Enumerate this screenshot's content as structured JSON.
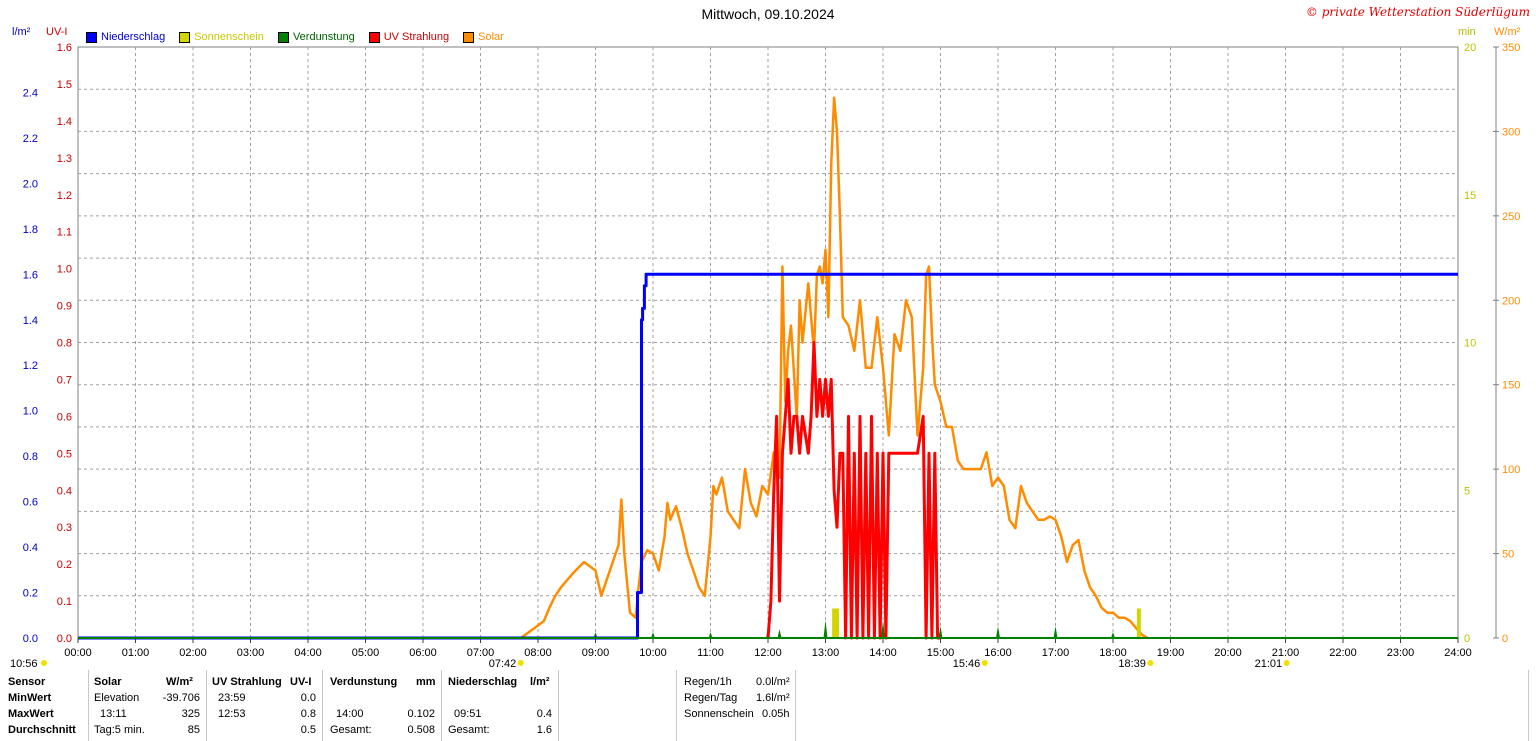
{
  "header": {
    "title": "Mittwoch, 09.10.2024",
    "copyright": "© private Wetterstation Süderlügum",
    "unit_rain": "l/m²",
    "unit_uv": "UV-I",
    "unit_min": "min",
    "unit_solar": "W/m²"
  },
  "legend": [
    {
      "label": "Niederschlag",
      "color": "#0000ff"
    },
    {
      "label": "Sonnenschein",
      "color": "#d4d400"
    },
    {
      "label": "Verdunstung",
      "color": "#008000"
    },
    {
      "label": "UV Strahlung",
      "color": "#ff0000"
    },
    {
      "label": "Solar",
      "color": "#ff8c00"
    }
  ],
  "chart_data": {
    "type": "line",
    "x_unit": "hour",
    "x_ticks": [
      "00:00",
      "01:00",
      "02:00",
      "03:00",
      "04:00",
      "05:00",
      "06:00",
      "07:00",
      "08:00",
      "09:00",
      "10:00",
      "11:00",
      "12:00",
      "13:00",
      "14:00",
      "15:00",
      "16:00",
      "17:00",
      "18:00",
      "19:00",
      "20:00",
      "21:00",
      "22:00",
      "23:00",
      "24:00"
    ],
    "y_axes": {
      "rain": {
        "label": "l/m²",
        "range": [
          0,
          2.6
        ],
        "ticks": [
          "0.0",
          "0.2",
          "0.4",
          "0.6",
          "0.8",
          "1.0",
          "1.2",
          "1.4",
          "1.6",
          "1.8",
          "2.0",
          "2.2",
          "2.4"
        ],
        "color": "#0000cc"
      },
      "uv": {
        "label": "UV-I",
        "range": [
          0,
          1.6
        ],
        "ticks": [
          "0.0",
          "0.1",
          "0.2",
          "0.3",
          "0.4",
          "0.5",
          "0.6",
          "0.7",
          "0.8",
          "0.9",
          "1.0",
          "1.1",
          "1.2",
          "1.3",
          "1.4",
          "1.5",
          "1.6"
        ],
        "color": "#cc0000"
      },
      "sun_min": {
        "label": "min",
        "range": [
          0,
          20
        ],
        "ticks": [
          "0",
          "5",
          "10",
          "15",
          "20"
        ],
        "color": "#cccc00"
      },
      "solar": {
        "label": "W/m²",
        "range": [
          0,
          350
        ],
        "ticks": [
          "0",
          "50",
          "100",
          "150",
          "200",
          "250",
          "300",
          "350"
        ],
        "color": "#ff8c00"
      }
    },
    "grid": true,
    "series": [
      {
        "name": "Niederschlag",
        "axis": "rain",
        "color": "#0000ff",
        "x": [
          0,
          9.73,
          9.73,
          9.8,
          9.8,
          9.82,
          9.82,
          9.85,
          9.85,
          9.88,
          9.88,
          24
        ],
        "y": [
          0,
          0,
          0.2,
          0.2,
          1.4,
          1.4,
          1.45,
          1.45,
          1.55,
          1.55,
          1.6,
          1.6
        ]
      },
      {
        "name": "Solar",
        "axis": "solar",
        "color": "#ff8c00",
        "x": [
          7.7,
          7.9,
          8.1,
          8.2,
          8.3,
          8.4,
          8.6,
          8.8,
          9.0,
          9.1,
          9.2,
          9.3,
          9.4,
          9.45,
          9.5,
          9.6,
          9.7,
          9.75,
          9.8,
          9.9,
          10.0,
          10.1,
          10.2,
          10.25,
          10.3,
          10.4,
          10.5,
          10.6,
          10.7,
          10.8,
          10.9,
          11.0,
          11.05,
          11.1,
          11.2,
          11.3,
          11.4,
          11.5,
          11.6,
          11.7,
          11.8,
          11.9,
          12.0,
          12.1,
          12.2,
          12.25,
          12.3,
          12.35,
          12.4,
          12.5,
          12.55,
          12.6,
          12.7,
          12.75,
          12.8,
          12.85,
          12.9,
          12.95,
          13.0,
          13.05,
          13.1,
          13.15,
          13.2,
          13.25,
          13.3,
          13.4,
          13.5,
          13.6,
          13.7,
          13.8,
          13.9,
          14.0,
          14.1,
          14.2,
          14.3,
          14.4,
          14.5,
          14.6,
          14.7,
          14.75,
          14.8,
          14.85,
          14.9,
          15.0,
          15.1,
          15.2,
          15.3,
          15.4,
          15.5,
          15.6,
          15.7,
          15.8,
          15.9,
          16.0,
          16.1,
          16.2,
          16.3,
          16.4,
          16.5,
          16.6,
          16.7,
          16.8,
          16.9,
          17.0,
          17.1,
          17.2,
          17.3,
          17.4,
          17.5,
          17.6,
          17.7,
          17.8,
          17.9,
          18.0,
          18.1,
          18.2,
          18.3,
          18.4,
          18.5,
          18.6
        ],
        "y": [
          0,
          5,
          10,
          18,
          25,
          30,
          38,
          45,
          40,
          25,
          35,
          45,
          55,
          82,
          50,
          15,
          12,
          30,
          45,
          52,
          50,
          40,
          60,
          80,
          70,
          78,
          65,
          50,
          40,
          30,
          25,
          60,
          90,
          85,
          95,
          75,
          70,
          65,
          100,
          80,
          72,
          90,
          85,
          110,
          95,
          220,
          140,
          170,
          185,
          130,
          200,
          175,
          210,
          190,
          170,
          215,
          220,
          210,
          230,
          190,
          280,
          320,
          300,
          250,
          190,
          185,
          170,
          200,
          160,
          160,
          190,
          160,
          120,
          180,
          170,
          200,
          190,
          120,
          160,
          215,
          220,
          180,
          150,
          140,
          125,
          125,
          105,
          100,
          100,
          100,
          100,
          110,
          90,
          95,
          90,
          70,
          65,
          90,
          80,
          75,
          70,
          70,
          72,
          70,
          60,
          45,
          55,
          58,
          40,
          30,
          25,
          18,
          15,
          15,
          12,
          12,
          10,
          6,
          2,
          0
        ]
      },
      {
        "name": "UV Strahlung",
        "axis": "uv",
        "color": "#ff0000",
        "x": [
          12.0,
          12.05,
          12.1,
          12.15,
          12.2,
          12.25,
          12.3,
          12.35,
          12.4,
          12.45,
          12.5,
          12.55,
          12.6,
          12.7,
          12.75,
          12.8,
          12.85,
          12.9,
          12.95,
          13.0,
          13.05,
          13.1,
          13.15,
          13.2,
          13.25,
          13.3,
          13.35,
          13.4,
          13.45,
          13.5,
          13.55,
          13.6,
          13.65,
          13.7,
          13.75,
          13.8,
          13.85,
          13.9,
          13.95,
          14.0,
          14.05,
          14.1,
          14.15,
          14.2,
          14.25,
          14.3,
          14.4,
          14.5,
          14.6,
          14.7,
          14.75,
          14.8,
          14.85,
          14.9,
          14.95,
          15.0
        ],
        "y": [
          0,
          0.1,
          0.4,
          0.6,
          0.1,
          0.5,
          0.6,
          0.7,
          0.5,
          0.6,
          0.6,
          0.5,
          0.6,
          0.5,
          0.6,
          0.8,
          0.6,
          0.7,
          0.6,
          0.7,
          0.6,
          0.7,
          0.4,
          0.3,
          0.5,
          0.5,
          0.0,
          0.6,
          0.0,
          0.5,
          0.0,
          0.6,
          0.0,
          0.5,
          0.0,
          0.6,
          0.0,
          0.5,
          0.0,
          0.5,
          0.0,
          0.5,
          0.5,
          0.5,
          0.5,
          0.5,
          0.5,
          0.5,
          0.5,
          0.6,
          0.0,
          0.5,
          0.0,
          0.5,
          0.0,
          0.0
        ]
      },
      {
        "name": "Sonnenschein",
        "axis": "sun_min",
        "color": "#d4d400",
        "x": [
          13.15,
          13.2,
          18.45
        ],
        "y": [
          1,
          1,
          1
        ]
      },
      {
        "name": "Verdunstung",
        "axis": "sun_min",
        "color": "#008000",
        "x": [
          9.0,
          10.0,
          11.0,
          12.0,
          12.2,
          13.0,
          14.0,
          15.0,
          16.0,
          17.0,
          18.0
        ],
        "y": [
          0.2,
          0.2,
          0.2,
          0.3,
          0.3,
          0.6,
          0.6,
          0.4,
          0.4,
          0.4,
          0.2
        ]
      }
    ],
    "markers": [
      {
        "time_label": "10:56",
        "hour": 0
      },
      {
        "time_label": "07:42",
        "hour": 7.7
      },
      {
        "time_label": "15:46",
        "hour": 15.77
      },
      {
        "time_label": "18:39",
        "hour": 18.65
      },
      {
        "time_label": "21:01",
        "hour": 21.02
      }
    ]
  },
  "summary": {
    "sensor": {
      "title": "Sensor",
      "rows": [
        "MinWert",
        "MaxWert",
        "Durchschnitt"
      ]
    },
    "solar": {
      "title": "Solar",
      "unit": "W/m²",
      "min_label": "Elevation",
      "min_value": "-39.706",
      "max_label": "13:11",
      "max_value": "325",
      "avg_label": "Tag:5 min.",
      "avg_value": "85"
    },
    "uv": {
      "title": "UV Strahlung",
      "unit": "UV-I",
      "min_label": "23:59",
      "min_value": "0.0",
      "max_label": "12:53",
      "max_value": "0.8",
      "avg_value": "0.5"
    },
    "evap": {
      "title": "Verdunstung",
      "unit": "mm",
      "max_label": "14:00",
      "max_value": "0.102",
      "avg_label": "Gesamt:",
      "avg_value": "0.508"
    },
    "rain": {
      "title": "Niederschlag",
      "unit": "l/m²",
      "max_label": "09:51",
      "max_value": "0.4",
      "avg_label": "Gesamt:",
      "avg_value": "1.6"
    },
    "stats": {
      "regen1h_label": "Regen/1h",
      "regen1h_value": "0.0l/m²",
      "regentag_label": "Regen/Tag",
      "regentag_value": "1.6l/m²",
      "sonne_label": "Sonnenschein",
      "sonne_value": "0.05h"
    }
  }
}
